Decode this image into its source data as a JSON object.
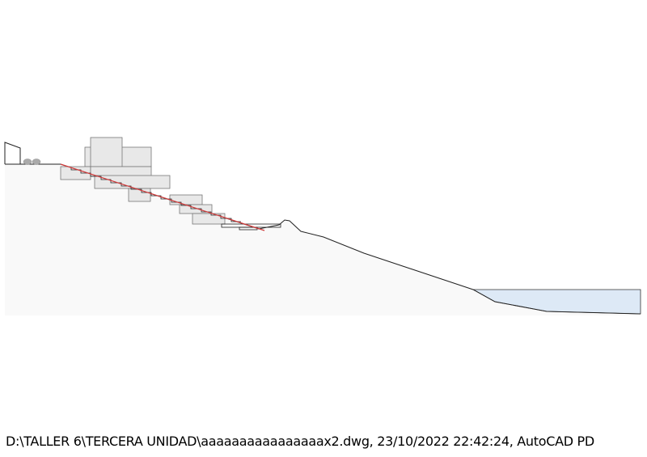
{
  "footer": {
    "plot_stamp": "D:\\TALLER 6\\TERCERA UNIDAD\\aaaaaaaaaaaaaaaax2.dwg, 23/10/2022 22:42:24, AutoCAD PD"
  },
  "colors": {
    "terrain_fill": "#f9f9f9",
    "block_fill": "#e8e8e8",
    "water_fill": "#dde9f6",
    "section_line": "#d03a3a",
    "outline": "#222222"
  }
}
